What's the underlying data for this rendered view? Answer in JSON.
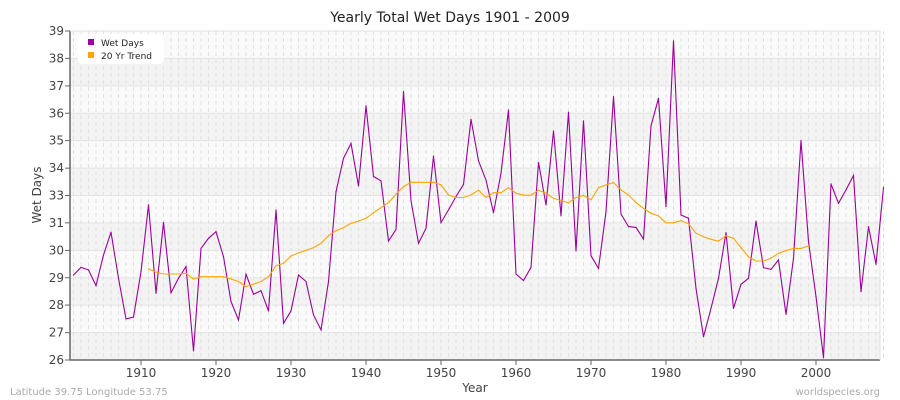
{
  "chart_data": {
    "type": "line",
    "title": "Yearly Total Wet Days 1901 - 2009",
    "xlabel": "Year",
    "ylabel": "Wet Days",
    "xlim": [
      1901,
      2009
    ],
    "ylim": [
      26,
      39
    ],
    "x_ticks": [
      1910,
      1920,
      1930,
      1940,
      1950,
      1960,
      1970,
      1980,
      1990,
      2000
    ],
    "y_ticks": [
      {
        "value": 26,
        "label": "26"
      },
      {
        "value": 27.08,
        "label": "27"
      },
      {
        "value": 28.17,
        "label": "28"
      },
      {
        "value": 29.25,
        "label": "29"
      },
      {
        "value": 30.33,
        "label": "30"
      },
      {
        "value": 31.42,
        "label": "31"
      },
      {
        "value": 32.5,
        "label": "33"
      },
      {
        "value": 33.58,
        "label": "34"
      },
      {
        "value": 34.67,
        "label": "35"
      },
      {
        "value": 35.75,
        "label": "36"
      },
      {
        "value": 36.83,
        "label": "37"
      },
      {
        "value": 37.92,
        "label": "38"
      },
      {
        "value": 39,
        "label": "39"
      }
    ],
    "grid": true,
    "legend_position": "top-left",
    "series": [
      {
        "name": "Wet Days",
        "color": "#9b009b",
        "x_start": 1901,
        "values": [
          29.36,
          29.66,
          29.56,
          28.94,
          30.15,
          31.05,
          29.23,
          27.62,
          27.7,
          29.49,
          32.13,
          28.64,
          31.43,
          28.66,
          29.23,
          29.69,
          26.36,
          30.41,
          30.81,
          31.07,
          30.08,
          28.31,
          27.58,
          29.39,
          28.6,
          28.74,
          27.94,
          31.93,
          27.45,
          27.94,
          29.36,
          29.1,
          27.78,
          27.19,
          29.1,
          32.65,
          33.97,
          34.56,
          32.88,
          36.04,
          33.25,
          33.08,
          30.7,
          31.16,
          36.61,
          32.3,
          30.61,
          31.2,
          34.06,
          31.43,
          31.93,
          32.46,
          32.94,
          35.51,
          33.87,
          33.11,
          31.82,
          33.38,
          35.88,
          29.4,
          29.14,
          29.66,
          33.81,
          32.13,
          35.05,
          31.7,
          35.79,
          30.31,
          35.45,
          30.12,
          29.62,
          31.86,
          36.41,
          31.77,
          31.27,
          31.24,
          30.78,
          35.25,
          36.34,
          32.06,
          38.61,
          31.73,
          31.6,
          28.83,
          26.92,
          28.04,
          29.23,
          31.03,
          28.04,
          28.99,
          29.23,
          31.49,
          29.65,
          29.58,
          29.95,
          27.8,
          30.02,
          34.67,
          30.68,
          28.5,
          26.09,
          32.96,
          32.19,
          32.72,
          33.29,
          28.7,
          31.27,
          29.78,
          32.82
        ]
      },
      {
        "name": "20 Yr Trend",
        "color": "#ffa500",
        "x_start": 1911,
        "values": [
          29.6,
          29.47,
          29.4,
          29.4,
          29.4,
          29.43,
          29.2,
          29.29,
          29.29,
          29.29,
          29.29,
          29.2,
          29.1,
          28.9,
          29.0,
          29.1,
          29.29,
          29.72,
          29.82,
          30.11,
          30.23,
          30.33,
          30.44,
          30.61,
          30.91,
          31.11,
          31.23,
          31.4,
          31.49,
          31.6,
          31.82,
          32.02,
          32.22,
          32.55,
          32.85,
          33.02,
          33.02,
          33.02,
          33.02,
          32.92,
          32.52,
          32.42,
          32.42,
          32.52,
          32.71,
          32.42,
          32.61,
          32.61,
          32.81,
          32.59,
          32.51,
          32.51,
          32.71,
          32.59,
          32.39,
          32.3,
          32.21,
          32.42,
          32.5,
          32.33,
          32.81,
          32.92,
          33.01,
          32.72,
          32.52,
          32.22,
          31.99,
          31.8,
          31.69,
          31.42,
          31.42,
          31.51,
          31.38,
          31.01,
          30.87,
          30.77,
          30.7,
          30.91,
          30.81,
          30.44,
          30.08,
          29.91,
          29.91,
          30.02,
          30.22,
          30.32,
          30.41,
          30.41,
          30.51
        ]
      }
    ]
  },
  "footer": {
    "location": "Latitude 39.75 Longitude 53.75",
    "source": "worldspecies.org"
  }
}
